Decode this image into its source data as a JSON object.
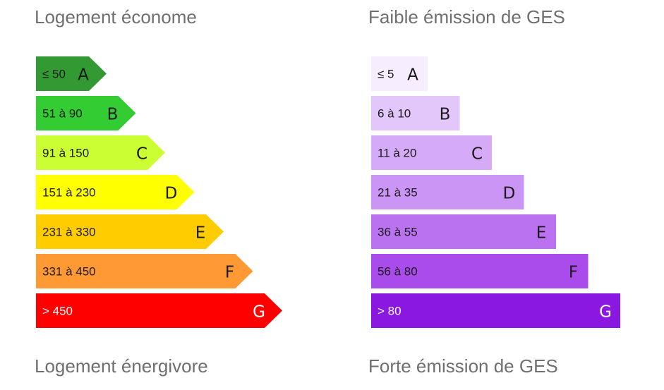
{
  "chart_data": [
    {
      "type": "bar",
      "top_label": "Logement économe",
      "bottom_label": "Logement énergivore",
      "shape": "arrow",
      "categories": [
        "A",
        "B",
        "C",
        "D",
        "E",
        "F",
        "G"
      ],
      "ranges": [
        "≤ 50",
        "51 à 90",
        "91 à 150",
        "151 à 230",
        "231 à 330",
        "331 à 450",
        "> 450"
      ],
      "values": [
        1,
        2,
        3,
        4,
        5,
        6,
        7
      ],
      "colors": [
        "#339933",
        "#33cc33",
        "#ccff33",
        "#ffff00",
        "#ffcc00",
        "#ff9933",
        "#ff0000"
      ],
      "text_colors": [
        "#1a1a1a",
        "#1a1a1a",
        "#1a1a1a",
        "#1a1a1a",
        "#1a1a1a",
        "#1a1a1a",
        "#ffffff"
      ]
    },
    {
      "type": "bar",
      "top_label": "Faible émission de GES",
      "bottom_label": "Forte émission de GES",
      "shape": "rectangle",
      "categories": [
        "A",
        "B",
        "C",
        "D",
        "E",
        "F",
        "G"
      ],
      "ranges": [
        "≤ 5",
        "6 à 10",
        "11 à 20",
        "21 à 35",
        "36 à 55",
        "56 à 80",
        "> 80"
      ],
      "values": [
        1,
        2,
        3,
        4,
        5,
        6,
        7
      ],
      "colors": [
        "#f6edfe",
        "#e4c7fa",
        "#d5aaf7",
        "#cb95f5",
        "#ba72f0",
        "#a94ceb",
        "#8a18e0"
      ],
      "text_colors": [
        "#1a1a1a",
        "#1a1a1a",
        "#1a1a1a",
        "#1a1a1a",
        "#1a1a1a",
        "#1a1a1a",
        "#ffffff"
      ]
    }
  ]
}
